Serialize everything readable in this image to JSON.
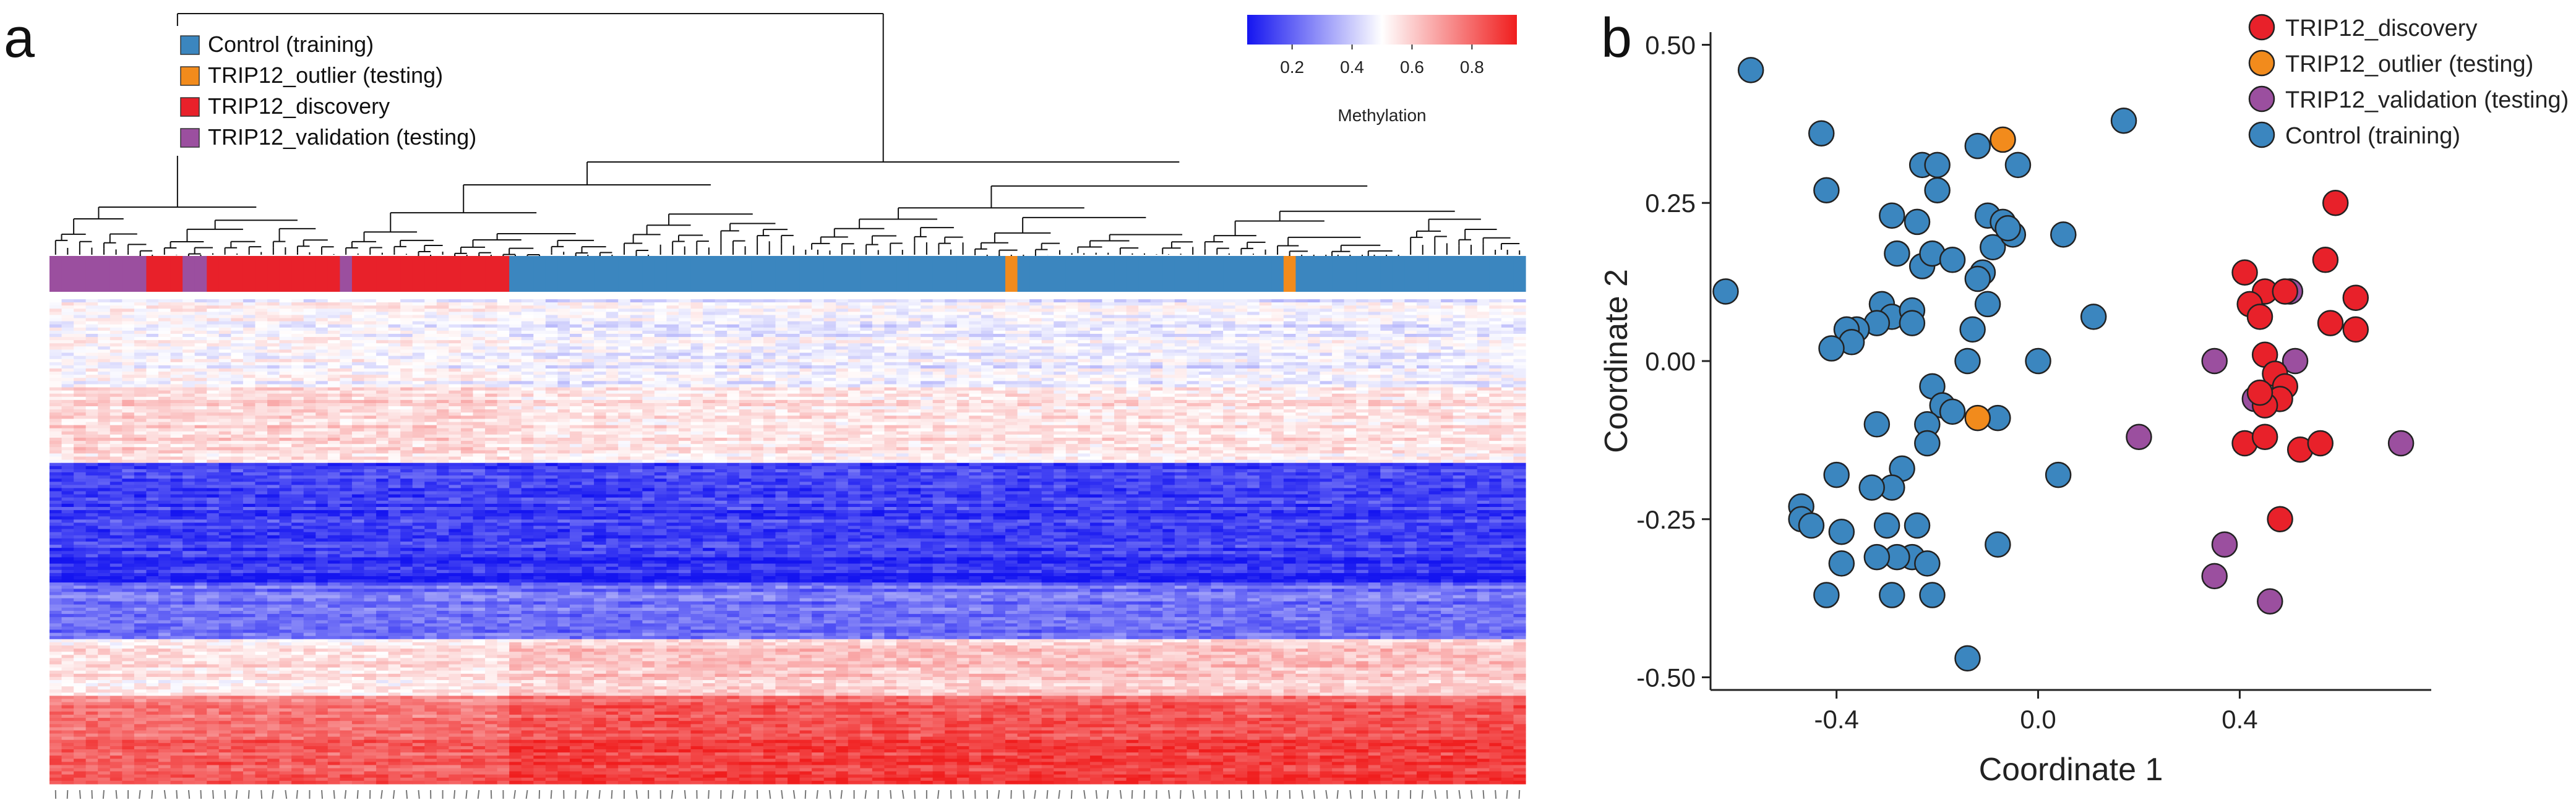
{
  "panel_labels": {
    "a": "a",
    "b": "b"
  },
  "colors": {
    "control": "#3b86bf",
    "outlier": "#f28b1c",
    "discovery": "#e8212a",
    "validation": "#9b4f9f",
    "heat_low": "#1515f0",
    "heat_mid": "#ffffff",
    "heat_high": "#f01e1e",
    "axis": "#222222"
  },
  "chart_data": [
    {
      "type": "heatmap",
      "title": "",
      "legend": {
        "entries": [
          {
            "label": "Control (training)",
            "group": "control"
          },
          {
            "label": "TRIP12_outlier (testing)",
            "group": "outlier"
          },
          {
            "label": "TRIP12_discovery",
            "group": "discovery"
          },
          {
            "label": "TRIP12_validation (testing)",
            "group": "validation"
          }
        ],
        "placement": "top-left"
      },
      "colorbar": {
        "label": "Methylation",
        "ticks": [
          "0.2",
          "0.4",
          "0.6",
          "0.8"
        ],
        "tick_values": [
          0.2,
          0.4,
          0.6,
          0.8
        ],
        "range": [
          0.05,
          0.95
        ]
      },
      "sample_groups": [
        {
          "group": "validation",
          "count": 8
        },
        {
          "group": "discovery",
          "count": 3
        },
        {
          "group": "validation",
          "count": 2
        },
        {
          "group": "discovery",
          "count": 11
        },
        {
          "group": "validation",
          "count": 1
        },
        {
          "group": "discovery",
          "count": 13
        },
        {
          "group": "control",
          "count": 41
        },
        {
          "group": "outlier",
          "count": 1
        },
        {
          "group": "control",
          "count": 22
        },
        {
          "group": "outlier",
          "count": 1
        },
        {
          "group": "control",
          "count": 19
        }
      ],
      "probe_blocks": [
        {
          "rows": 28,
          "mean_methylation": 0.46,
          "label": "intermediate (slightly blue)"
        },
        {
          "rows": 24,
          "mean_methylation": 0.55,
          "label": "intermediate (slightly red)"
        },
        {
          "rows": 30,
          "mean_methylation": 0.1,
          "label": "hypomethylated"
        },
        {
          "rows": 8,
          "mean_methylation": 0.05,
          "label": "strongly hypomethylated"
        },
        {
          "rows": 18,
          "mean_methylation": 0.2,
          "label": "low"
        },
        {
          "rows": 18,
          "mean_methylation": 0.62,
          "label": "moderately methylated"
        },
        {
          "rows": 14,
          "mean_methylation": 0.86,
          "label": "highly methylated"
        },
        {
          "rows": 14,
          "mean_methylation": 0.93,
          "label": "strongly methylated"
        }
      ],
      "clusters": [
        "TRIP12 (discovery + validation)",
        "Control (training) + TRIP12_outlier"
      ]
    },
    {
      "type": "scatter",
      "title": "",
      "xlabel": "Coordinate 1",
      "ylabel": "Coordinate 2",
      "xlim": [
        -0.65,
        0.78
      ],
      "ylim": [
        -0.52,
        0.52
      ],
      "xticks": [
        -0.4,
        0.0,
        0.4
      ],
      "xtick_labels": [
        "-0.4",
        "0.0",
        "0.4"
      ],
      "yticks": [
        -0.5,
        -0.25,
        0.0,
        0.25,
        0.5
      ],
      "ytick_labels": [
        "-0.50",
        "-0.25",
        "0.00",
        "0.25",
        "0.50"
      ],
      "legend": {
        "entries": [
          {
            "label": "TRIP12_discovery",
            "group": "discovery"
          },
          {
            "label": "TRIP12_outlier (testing)",
            "group": "outlier"
          },
          {
            "label": "TRIP12_validation (testing)",
            "group": "validation"
          },
          {
            "label": "Control (training)",
            "group": "control"
          }
        ],
        "placement": "top-right"
      },
      "series": [
        {
          "name": "Control (training)",
          "group": "control",
          "points": [
            [
              -0.57,
              0.46
            ],
            [
              -0.62,
              0.11
            ],
            [
              -0.43,
              0.36
            ],
            [
              -0.42,
              0.27
            ],
            [
              -0.29,
              0.23
            ],
            [
              -0.23,
              0.31
            ],
            [
              -0.2,
              0.31
            ],
            [
              -0.12,
              0.34
            ],
            [
              -0.04,
              0.31
            ],
            [
              0.17,
              0.38
            ],
            [
              -0.2,
              0.27
            ],
            [
              -0.24,
              0.22
            ],
            [
              -0.28,
              0.17
            ],
            [
              -0.23,
              0.15
            ],
            [
              -0.21,
              0.17
            ],
            [
              -0.17,
              0.16
            ],
            [
              -0.1,
              0.23
            ],
            [
              -0.09,
              0.18
            ],
            [
              -0.07,
              0.22
            ],
            [
              -0.05,
              0.2
            ],
            [
              -0.06,
              0.21
            ],
            [
              -0.11,
              0.14
            ],
            [
              0.05,
              0.2
            ],
            [
              -0.12,
              0.13
            ],
            [
              -0.1,
              0.09
            ],
            [
              -0.31,
              0.09
            ],
            [
              -0.29,
              0.07
            ],
            [
              -0.25,
              0.08
            ],
            [
              -0.32,
              0.06
            ],
            [
              -0.36,
              0.05
            ],
            [
              -0.38,
              0.05
            ],
            [
              -0.37,
              0.03
            ],
            [
              -0.41,
              0.02
            ],
            [
              -0.25,
              0.06
            ],
            [
              -0.13,
              0.05
            ],
            [
              -0.14,
              0.0
            ],
            [
              0.0,
              0.0
            ],
            [
              0.11,
              0.07
            ],
            [
              -0.21,
              -0.04
            ],
            [
              -0.19,
              -0.07
            ],
            [
              -0.17,
              -0.08
            ],
            [
              -0.22,
              -0.1
            ],
            [
              -0.22,
              -0.13
            ],
            [
              -0.32,
              -0.1
            ],
            [
              -0.08,
              -0.09
            ],
            [
              -0.27,
              -0.17
            ],
            [
              -0.29,
              -0.2
            ],
            [
              -0.33,
              -0.2
            ],
            [
              -0.4,
              -0.18
            ],
            [
              -0.47,
              -0.23
            ],
            [
              -0.47,
              -0.25
            ],
            [
              -0.45,
              -0.26
            ],
            [
              -0.39,
              -0.27
            ],
            [
              -0.3,
              -0.26
            ],
            [
              -0.24,
              -0.26
            ],
            [
              -0.25,
              -0.31
            ],
            [
              -0.22,
              -0.32
            ],
            [
              -0.28,
              -0.31
            ],
            [
              -0.32,
              -0.31
            ],
            [
              -0.39,
              -0.32
            ],
            [
              -0.42,
              -0.37
            ],
            [
              -0.29,
              -0.37
            ],
            [
              -0.21,
              -0.37
            ],
            [
              -0.08,
              -0.29
            ],
            [
              0.04,
              -0.18
            ],
            [
              -0.14,
              -0.47
            ]
          ]
        },
        {
          "name": "TRIP12_outlier (testing)",
          "group": "outlier",
          "points": [
            [
              -0.07,
              0.35
            ],
            [
              -0.12,
              -0.09
            ]
          ]
        },
        {
          "name": "TRIP12_validation (testing)",
          "group": "validation",
          "points": [
            [
              0.2,
              -0.12
            ],
            [
              0.35,
              0.0
            ],
            [
              0.5,
              0.11
            ],
            [
              0.51,
              0.0
            ],
            [
              0.43,
              -0.06
            ],
            [
              0.72,
              -0.13
            ],
            [
              0.37,
              -0.29
            ],
            [
              0.35,
              -0.34
            ],
            [
              0.46,
              -0.38
            ]
          ]
        },
        {
          "name": "TRIP12_discovery",
          "group": "discovery",
          "points": [
            [
              0.59,
              0.25
            ],
            [
              0.57,
              0.16
            ],
            [
              0.41,
              0.14
            ],
            [
              0.45,
              0.11
            ],
            [
              0.49,
              0.11
            ],
            [
              0.42,
              0.09
            ],
            [
              0.44,
              0.07
            ],
            [
              0.58,
              0.06
            ],
            [
              0.63,
              0.1
            ],
            [
              0.63,
              0.05
            ],
            [
              0.45,
              0.01
            ],
            [
              0.47,
              -0.02
            ],
            [
              0.49,
              -0.04
            ],
            [
              0.48,
              -0.06
            ],
            [
              0.45,
              -0.07
            ],
            [
              0.41,
              -0.13
            ],
            [
              0.45,
              -0.12
            ],
            [
              0.52,
              -0.14
            ],
            [
              0.56,
              -0.13
            ],
            [
              0.48,
              -0.25
            ],
            [
              0.44,
              -0.05
            ]
          ]
        }
      ]
    }
  ]
}
